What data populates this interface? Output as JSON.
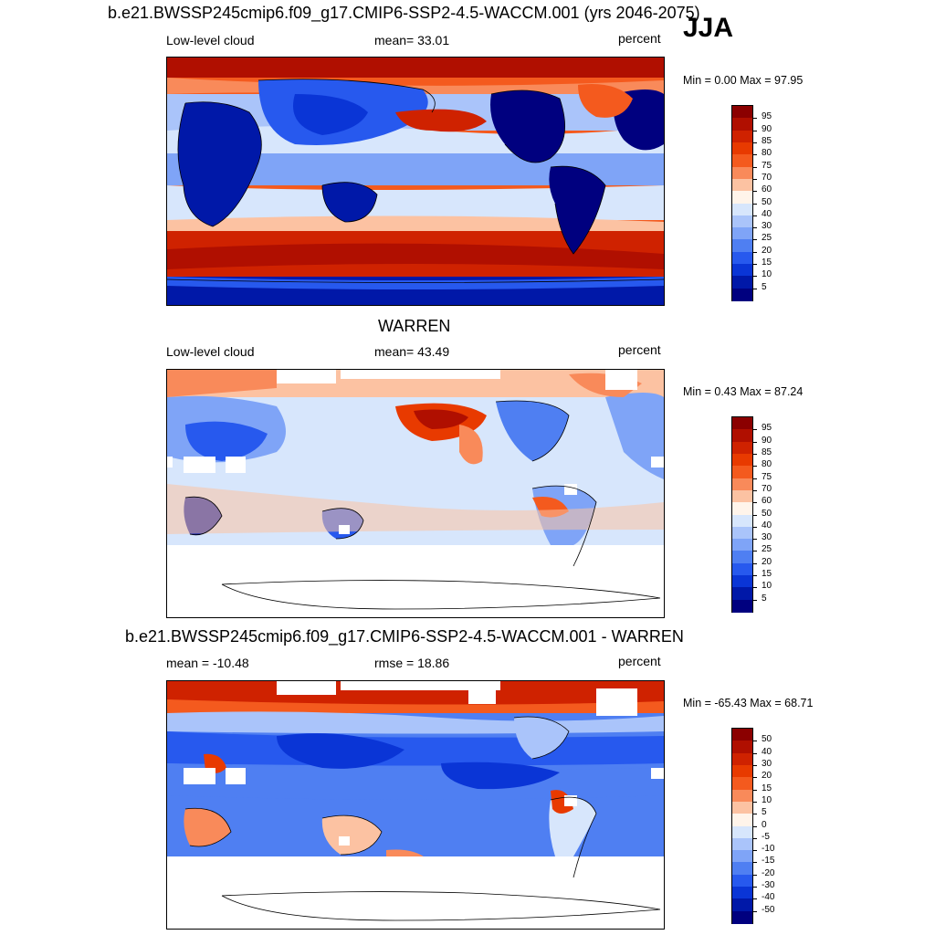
{
  "season": "JJA",
  "panel1": {
    "title": "b.e21.BWSSP245cmip6.f09_g17.CMIP6-SSP2-4.5-WACCM.001 (yrs 2046-2075)",
    "left": "Low-level cloud",
    "center": "mean=  33.01",
    "units": "percent",
    "stats": "Min =   0.00 Max =  97.95"
  },
  "panel2": {
    "title": "WARREN",
    "left": "Low-level cloud",
    "center": "mean=  43.49",
    "units": "percent",
    "stats": "Min =   0.43 Max =  87.24"
  },
  "panel3": {
    "title": "b.e21.BWSSP245cmip6.f09_g17.CMIP6-SSP2-4.5-WACCM.001 - WARREN",
    "left": "mean = -10.48",
    "center": "rmse =  18.86",
    "units": "percent",
    "stats": "Min = -65.43 Max =  68.71"
  },
  "colorbar_abs": {
    "labels": [
      "95",
      "90",
      "85",
      "80",
      "75",
      "70",
      "60",
      "50",
      "40",
      "30",
      "25",
      "20",
      "15",
      "10",
      "5"
    ],
    "colors": [
      "#8b0000",
      "#b00f00",
      "#cf2200",
      "#e83a00",
      "#f45a1e",
      "#f98a5a",
      "#fcc2a2",
      "#fff4ea",
      "#d7e6fc",
      "#aac4fa",
      "#7fa4f7",
      "#4f7ff2",
      "#2759ee",
      "#0a35d6",
      "#0018a8",
      "#00007f"
    ]
  },
  "colorbar_diff": {
    "labels": [
      "50",
      "40",
      "30",
      "20",
      "15",
      "10",
      "5",
      "0",
      "-5",
      "-10",
      "-15",
      "-20",
      "-30",
      "-40",
      "-50"
    ],
    "colors": [
      "#8b0000",
      "#b00f00",
      "#cf2200",
      "#e83a00",
      "#f45a1e",
      "#f98a5a",
      "#fcc2a2",
      "#fff4ea",
      "#d7e6fc",
      "#aac4fa",
      "#7fa4f7",
      "#4f7ff2",
      "#2759ee",
      "#0a35d6",
      "#0018a8",
      "#00007f"
    ]
  }
}
